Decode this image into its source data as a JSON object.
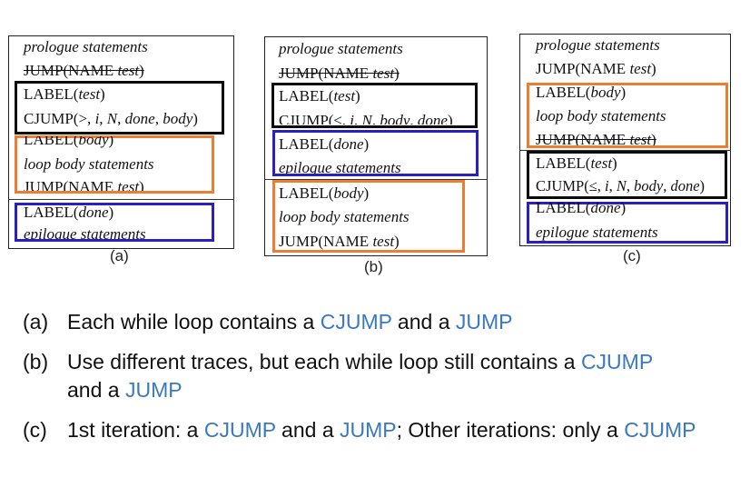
{
  "panels": {
    "a": {
      "caption": "(a)",
      "prologue": "prologue statements",
      "jump_name": "JUMP(NAME ",
      "jump_test": "test",
      "jump_close": ")",
      "label_test": "LABEL(",
      "test": "test",
      "rparen": ")",
      "cjump_pre": "CJUMP(>, ",
      "cjump_i": "i",
      "cjump_sep1": ", ",
      "cjump_N": "N",
      "cjump_sep2": ", ",
      "cjump_done": "done",
      "cjump_sep3": ", ",
      "cjump_body": "body",
      "cjump_close": ")",
      "label_body": "LABEL(",
      "body": "body",
      "loop_body": "loop body statements",
      "jump2_name": "JUMP(NAME ",
      "jump2_test": "test",
      "jump2_close": ")",
      "label_done": "LABEL(",
      "done": "done",
      "epilogue": "epilogue statements"
    },
    "b": {
      "caption": "(b)",
      "prologue": "prologue statements",
      "jump_name": "JUMP(NAME ",
      "jump_test": "test",
      "jump_close": ")",
      "label_test": "LABEL(",
      "test": "test",
      "rparen": ")",
      "cjump_pre": "CJUMP(≤, ",
      "cjump_i": "i",
      "cjump_sep1": ", ",
      "cjump_N": "N",
      "cjump_sep2": ", ",
      "cjump_body": "body",
      "cjump_sep3": ", ",
      "cjump_done": "done",
      "cjump_close": ")",
      "label_done": "LABEL(",
      "done": "done",
      "epilogue": "epilogue statements",
      "label_body": "LABEL(",
      "body": "body",
      "loop_body": "loop body statements",
      "jump2_name": "JUMP(NAME ",
      "jump2_test": "test",
      "jump2_close": ")"
    },
    "c": {
      "caption": "(c)",
      "prologue": "prologue statements",
      "jump_name": "JUMP(NAME ",
      "jump_test": "test",
      "jump_close": ")",
      "label_body": "LABEL(",
      "body": "body",
      "rparen": ")",
      "loop_body": "loop body statements",
      "jump2_name": "JUMP(NAME ",
      "jump2_test": "test",
      "jump2_close": ")",
      "label_test": "LABEL(",
      "test": "test",
      "cjump_pre": "CJUMP(≤, ",
      "cjump_i": "i",
      "cjump_sep1": ", ",
      "cjump_N": "N",
      "cjump_sep2": ", ",
      "cjump_body": "body",
      "cjump_sep3": ", ",
      "cjump_done": "done",
      "cjump_close": ")",
      "label_done": "LABEL(",
      "done": "done",
      "epilogue": "epilogue statements"
    }
  },
  "notes": [
    {
      "tag": "(a)",
      "t1": "Each while loop contains a ",
      "k1": "CJUMP",
      "t2": " and a ",
      "k2": "JUMP"
    },
    {
      "tag": "(b)",
      "t1": "Use different traces, but each while loop still contains a ",
      "k1": "CJUMP",
      "t2": " and a ",
      "k2": "JUMP"
    },
    {
      "tag": "(c)",
      "t1": "1st iteration: a ",
      "k1": "CJUMP",
      "t2": " and a ",
      "k2": "JUMP",
      "t3": "; Other iterations: only a ",
      "k3": "CJUMP"
    }
  ],
  "colors": {
    "keyword": "#3a78c2",
    "test_block": "#0b0b0b",
    "body_block": "#ed7d31",
    "done_block": "#2a1fbf"
  }
}
